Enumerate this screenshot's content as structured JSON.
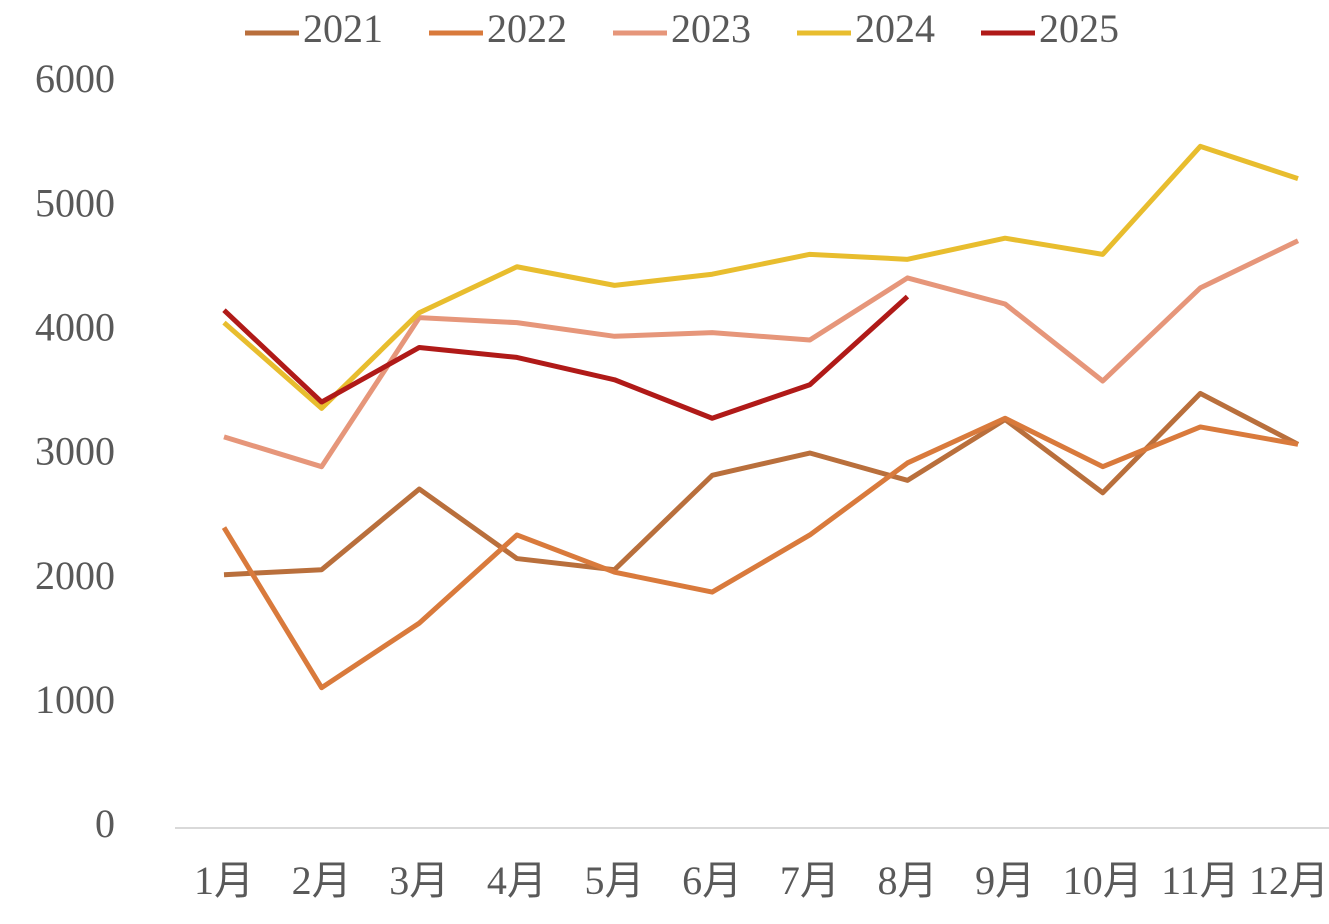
{
  "chart_data": {
    "type": "line",
    "categories": [
      "1月",
      "2月",
      "3月",
      "4月",
      "5月",
      "6月",
      "7月",
      "8月",
      "9月",
      "10月",
      "11月",
      "12月"
    ],
    "series": [
      {
        "name": "2021",
        "color": "#b96f3c",
        "values": [
          2040,
          2080,
          2730,
          2170,
          2080,
          2840,
          3020,
          2800,
          3290,
          2700,
          3500,
          3090
        ]
      },
      {
        "name": "2022",
        "color": "#d97a3c",
        "values": [
          2420,
          1130,
          1650,
          2360,
          2060,
          1900,
          2360,
          2940,
          3300,
          2910,
          3230,
          3090
        ]
      },
      {
        "name": "2023",
        "color": "#e6967a",
        "values": [
          3150,
          2910,
          4110,
          4070,
          3960,
          3990,
          3930,
          4430,
          4220,
          3600,
          4350,
          4730
        ]
      },
      {
        "name": "2024",
        "color": "#e8bd2e",
        "values": [
          4070,
          3380,
          4150,
          4520,
          4370,
          4460,
          4620,
          4580,
          4750,
          4620,
          5490,
          5230
        ]
      },
      {
        "name": "2025",
        "color": "#b01a18",
        "values": [
          4170,
          3430,
          3870,
          3790,
          3610,
          3300,
          3570,
          4280,
          null,
          null,
          null,
          null
        ]
      }
    ],
    "ylim": [
      0,
      6000
    ],
    "yticks": [
      0,
      1000,
      2000,
      3000,
      4000,
      5000,
      6000
    ],
    "legend": "top",
    "grid": false
  }
}
